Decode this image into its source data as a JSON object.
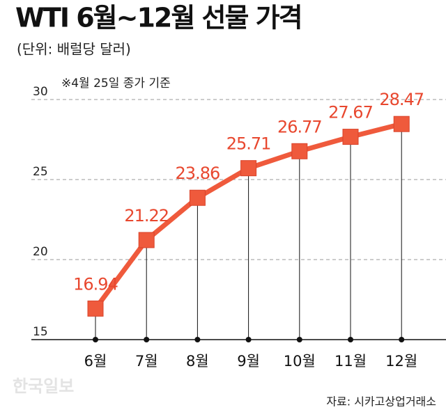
{
  "chart_data": {
    "type": "line",
    "title": "WTI 6월~12월 선물 가격",
    "subtitle": "(단위: 배럴당 달러)",
    "note": "※4월 25일 종가 기준",
    "source": "자료: 시카고상업거래소",
    "watermark": "한국일보",
    "categories": [
      "6월",
      "7월",
      "8월",
      "9월",
      "10월",
      "11월",
      "12월"
    ],
    "values": [
      16.94,
      21.22,
      23.86,
      25.71,
      26.77,
      27.67,
      28.47
    ],
    "color": "#ef5a3c",
    "label_color": "#e8472e",
    "ylim": [
      15,
      30
    ],
    "yticks": [
      15,
      20,
      25,
      30
    ],
    "grid": true
  }
}
